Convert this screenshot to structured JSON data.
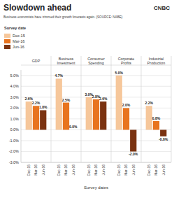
{
  "chart_data": {
    "type": "bar",
    "title": "Slowdown ahead",
    "subtitle": "Business economists have trimmed their growth forecasts again. (SOURCE: NABE)",
    "logo": "CNBC",
    "legend_title": "Survey date",
    "x_label": "Survey dates",
    "categories": [
      "GDP",
      "Business Investment",
      "Consumer Spending",
      "Corporate Profits",
      "Industrial Production"
    ],
    "series": [
      {
        "name": "Dec-15",
        "color": "#f6c79b",
        "values": [
          2.6,
          4.7,
          3.0,
          5.0,
          2.2
        ],
        "value_labels": [
          "2.6%",
          "4.7%",
          "3.0%",
          "5.0%",
          "2.2%"
        ]
      },
      {
        "name": "Mar-16",
        "color": "#e8741f",
        "values": [
          2.2,
          2.5,
          2.8,
          2.0,
          0.8
        ],
        "value_labels": [
          "2.2%",
          "2.5%",
          "2.8%",
          "2.0%",
          "0.8%"
        ]
      },
      {
        "name": "Jun-16",
        "color": "#7b3311",
        "values": [
          1.8,
          0.0,
          2.6,
          -2.0,
          -0.6
        ],
        "value_labels": [
          "1.8%",
          "0.0%",
          "2.6%",
          "-2.0%",
          "-0.6%"
        ]
      }
    ],
    "ylim": [
      -3,
      5.5
    ],
    "yticks": [
      {
        "value": -3,
        "label": "-3.0%"
      },
      {
        "value": -2,
        "label": "-2.0%"
      },
      {
        "value": -1,
        "label": "-1.0%"
      },
      {
        "value": 0,
        "label": "0.0%"
      },
      {
        "value": 1,
        "label": "1.0%"
      },
      {
        "value": 2,
        "label": "2.0%"
      },
      {
        "value": 3,
        "label": "3.0%"
      },
      {
        "value": 4,
        "label": "4.0%"
      },
      {
        "value": 5,
        "label": "5.0%"
      }
    ],
    "grid": true,
    "legend": "top-left",
    "data_labels": true
  }
}
